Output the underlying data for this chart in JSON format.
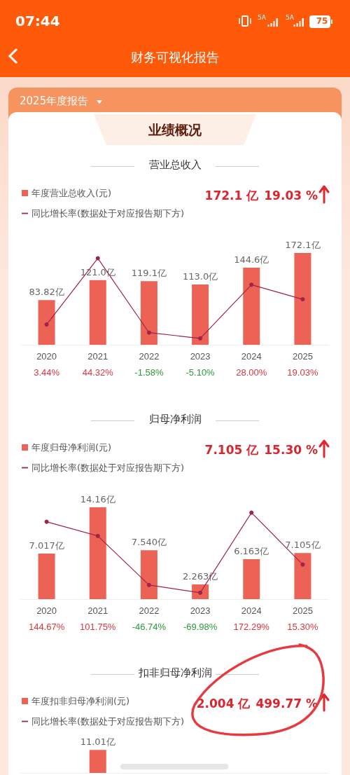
{
  "chart_data": [
    {
      "type": "bar",
      "title": "营业总收入",
      "categories": [
        "2020",
        "2021",
        "2022",
        "2023",
        "2024",
        "2025"
      ],
      "legend": "top left",
      "grid": false,
      "marker": "circle",
      "series": [
        {
          "name": "年度营业总收入(元)",
          "color": "#ec6255",
          "values": [
            83.82,
            121.0,
            119.1,
            113.0,
            144.6,
            172.1
          ],
          "value_labels": [
            "83.82亿",
            "121.0亿",
            "119.1亿",
            "113.0亿",
            "144.6亿",
            "172.1亿"
          ]
        },
        {
          "name": "同比增长率(数据处于对应报告期下方)",
          "type": "line",
          "axis": "y2",
          "color": "#a0234a",
          "values": [
            3.44,
            44.32,
            -1.58,
            -5.1,
            28.0,
            19.03
          ],
          "value_labels": [
            "3.44%",
            "44.32%",
            "-1.58%",
            "-5.10%",
            "28.00%",
            "19.03%"
          ]
        }
      ],
      "annotations": [
        "07:44",
        "5A",
        "5A",
        "75",
        "财务可视化报告",
        "2025年度报告",
        "业绩概况",
        "172.1 亿",
        "19.03 %"
      ]
    },
    {
      "type": "bar",
      "title": "归母净利润",
      "categories": [
        "2020",
        "2021",
        "2022",
        "2023",
        "2024",
        "2025"
      ],
      "legend": "top left",
      "grid": false,
      "marker": "circle",
      "series": [
        {
          "name": "年度归母净利润(元)",
          "color": "#ec6255",
          "values": [
            7.017,
            14.16,
            7.54,
            2.263,
            6.163,
            7.105
          ],
          "value_labels": [
            "7.017亿",
            "14.16亿",
            "7.540亿",
            "2.263亿",
            "6.163亿",
            "7.105亿"
          ]
        },
        {
          "name": "同比增长率(数据处于对应报告期下方)",
          "type": "line",
          "axis": "y2",
          "color": "#a0234a",
          "values": [
            144.67,
            101.75,
            -46.74,
            -69.98,
            172.29,
            15.3
          ],
          "value_labels": [
            "144.67%",
            "101.75%",
            "-46.74%",
            "-69.98%",
            "172.29%",
            "15.30%"
          ]
        }
      ],
      "annotations": [
        "7.105 亿",
        "15.30 %"
      ]
    },
    {
      "type": "bar",
      "title": "扣非归母净利润",
      "categories": [
        null,
        null,
        null,
        null,
        null,
        null
      ],
      "legend": "top left",
      "grid": false,
      "marker": "circle",
      "series": [
        {
          "name": "年度扣非归母净利润(元)",
          "color": "#ec6255",
          "values": [
            null,
            11.01,
            null,
            null,
            null,
            null
          ],
          "value_labels": [
            null,
            "11.01亿",
            null,
            null,
            null,
            null
          ]
        },
        {
          "name": "同比增长率(数据处于对应报告期下方)",
          "type": "line",
          "axis": "y2",
          "color": "#a0234a",
          "values": [
            null,
            null,
            null,
            null,
            null,
            null
          ]
        }
      ],
      "annotations": [
        "2.004 亿",
        "499.77 %"
      ]
    }
  ]
}
